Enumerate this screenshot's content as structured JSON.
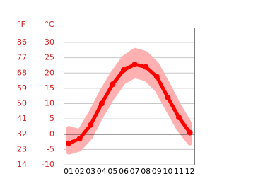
{
  "chart_data": {
    "type": "line",
    "y_label": "°C",
    "y2_label": "°F",
    "categories": [
      "01",
      "02",
      "03",
      "04",
      "05",
      "06",
      "07",
      "08",
      "09",
      "10",
      "11",
      "12"
    ],
    "values": [
      -3,
      -1.5,
      3,
      10,
      16.3,
      21,
      22.8,
      22,
      18.8,
      12,
      5.5,
      0.5
    ],
    "high": [
      2,
      1,
      7,
      14,
      20,
      25,
      27.5,
      26.5,
      23,
      16.5,
      9.5,
      3.5
    ],
    "low": [
      -6,
      -5,
      -1,
      6,
      12,
      17,
      19,
      18,
      14.5,
      8,
      1.5,
      -3
    ],
    "color": "#ff0000",
    "band_color": "#ffb0b0",
    "ylim": [
      -10,
      30
    ],
    "yticks": [
      -10,
      -5,
      0,
      5,
      10,
      15,
      20,
      25,
      30
    ],
    "y2lim": [
      14,
      86
    ],
    "y2ticks": [
      14,
      23,
      32,
      41,
      50,
      59,
      68,
      77,
      86
    ],
    "grid": true,
    "zero_line": true
  }
}
